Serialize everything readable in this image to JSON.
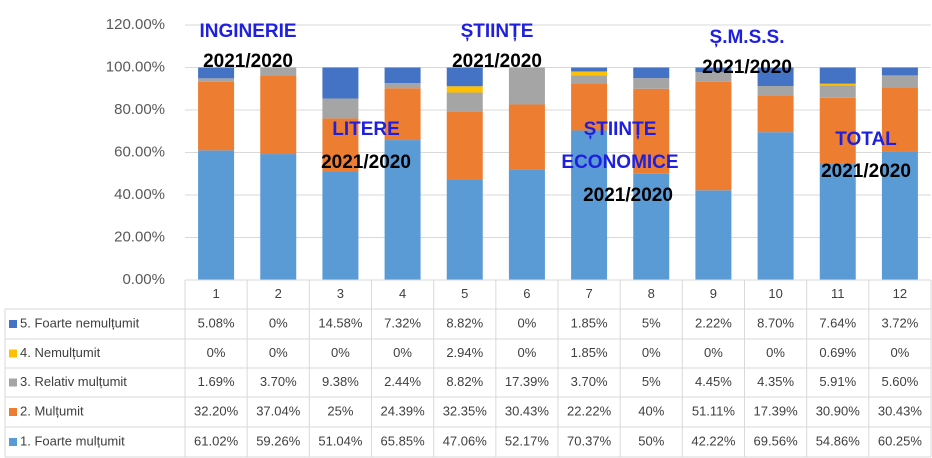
{
  "chart_data": {
    "type": "stacked_bar",
    "categories": [
      "1",
      "2",
      "3",
      "4",
      "5",
      "6",
      "7",
      "8",
      "9",
      "10",
      "11",
      "12"
    ],
    "ylim": [
      0,
      120
    ],
    "yticks": [
      {
        "value": 0,
        "label": "0.00%"
      },
      {
        "value": 20,
        "label": "20.00%"
      },
      {
        "value": 40,
        "label": "40.00%"
      },
      {
        "value": 60,
        "label": "60.00%"
      },
      {
        "value": 80,
        "label": "80.00%"
      },
      {
        "value": 100,
        "label": "100.00%"
      },
      {
        "value": 120,
        "label": "120.00%"
      }
    ],
    "grid": true,
    "series": [
      {
        "name": "1. Foarte mulțumit",
        "color": "#5b9bd5",
        "values": [
          61.02,
          59.26,
          51.04,
          65.85,
          47.06,
          52.17,
          70.37,
          50,
          42.22,
          69.56,
          54.86,
          60.25
        ],
        "value_labels": [
          "61.02%",
          "59.26%",
          "51.04%",
          "65.85%",
          "47.06%",
          "52.17%",
          "70.37%",
          "50%",
          "42.22%",
          "69.56%",
          "54.86%",
          "60.25%"
        ]
      },
      {
        "name": "2. Mulțumit",
        "color": "#ed7d31",
        "values": [
          32.2,
          37.04,
          25,
          24.39,
          32.35,
          30.43,
          22.22,
          40,
          51.11,
          17.39,
          30.9,
          30.43
        ],
        "value_labels": [
          "32.20%",
          "37.04%",
          "25%",
          "24.39%",
          "32.35%",
          "30.43%",
          "22.22%",
          "40%",
          "51.11%",
          "17.39%",
          "30.90%",
          "30.43%"
        ]
      },
      {
        "name": "3. Relativ mulțumit",
        "color": "#a5a5a5",
        "values": [
          1.69,
          3.7,
          9.38,
          2.44,
          8.82,
          17.39,
          3.7,
          5,
          4.45,
          4.35,
          5.91,
          5.6
        ],
        "value_labels": [
          "1.69%",
          "3.70%",
          "9.38%",
          "2.44%",
          "8.82%",
          "17.39%",
          "3.70%",
          "5%",
          "4.45%",
          "4.35%",
          "5.91%",
          "5.60%"
        ]
      },
      {
        "name": "4. Nemulțumit",
        "color": "#ffc000",
        "values": [
          0,
          0,
          0,
          0,
          2.94,
          0,
          1.85,
          0,
          0,
          0,
          0.69,
          0
        ],
        "value_labels": [
          "0%",
          "0%",
          "0%",
          "0%",
          "2.94%",
          "0%",
          "1.85%",
          "0%",
          "0%",
          "0%",
          "0.69%",
          "0%"
        ]
      },
      {
        "name": "5. Foarte nemulțumit",
        "color": "#4472c4",
        "values": [
          5.08,
          0,
          14.58,
          7.32,
          8.82,
          0,
          1.85,
          5,
          2.22,
          8.7,
          7.64,
          3.72
        ],
        "value_labels": [
          "5.08%",
          "0%",
          "14.58%",
          "7.32%",
          "8.82%",
          "0%",
          "1.85%",
          "5%",
          "2.22%",
          "8.70%",
          "7.64%",
          "3.72%"
        ]
      }
    ],
    "annotations": [
      {
        "text": "INGINERIE",
        "color": "#1f1fe0"
      },
      {
        "text": "2021/2020",
        "color": "#000000"
      },
      {
        "text": "LITERE",
        "color": "#1f1fe0"
      },
      {
        "text": "2021/2020",
        "color": "#000000"
      },
      {
        "text": "ȘTIINȚE",
        "color": "#1f1fe0"
      },
      {
        "text": "2021/2020",
        "color": "#000000"
      },
      {
        "text": "ȘTIINȚE",
        "color": "#1f1fe0"
      },
      {
        "text": "ECONOMICE",
        "color": "#1f1fe0"
      },
      {
        "text": "2021/2020",
        "color": "#000000"
      },
      {
        "text": "Ș.M.S.S.",
        "color": "#1f1fe0"
      },
      {
        "text": "2021/2020",
        "color": "#000000"
      },
      {
        "text": "TOTAL",
        "color": "#1f1fe0"
      },
      {
        "text": "2021/2020",
        "color": "#000000"
      }
    ]
  }
}
